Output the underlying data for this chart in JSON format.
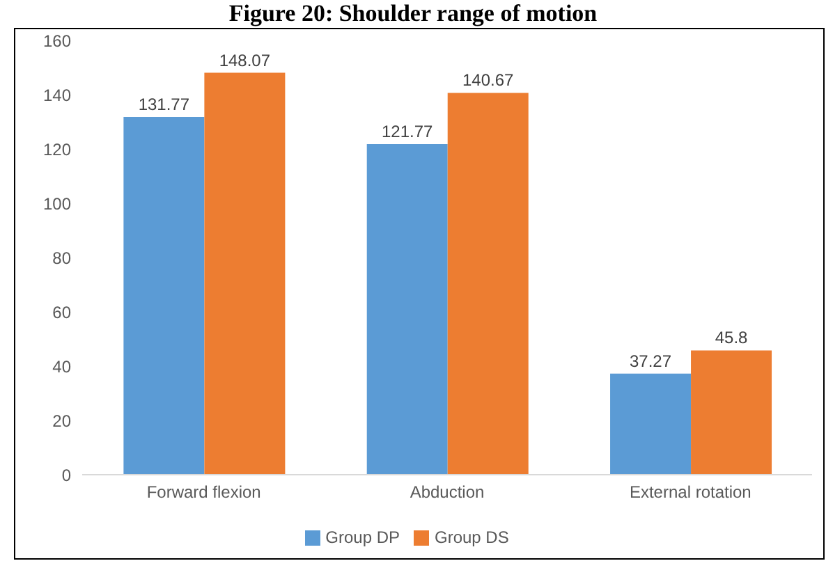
{
  "chart_data": {
    "type": "bar",
    "title": "Figure 20: Shoulder range of motion",
    "categories": [
      "Forward flexion",
      "Abduction",
      "External rotation"
    ],
    "series": [
      {
        "name": "Group DP",
        "color": "#5b9bd5",
        "values": [
          131.77,
          121.77,
          37.27
        ]
      },
      {
        "name": "Group DS",
        "color": "#ed7d31",
        "values": [
          148.07,
          140.67,
          45.8
        ]
      }
    ],
    "ylim": [
      0,
      160
    ],
    "yticks": [
      0,
      20,
      40,
      60,
      80,
      100,
      120,
      140,
      160
    ],
    "grid": false,
    "legend": "bottom",
    "data_labels": true
  }
}
